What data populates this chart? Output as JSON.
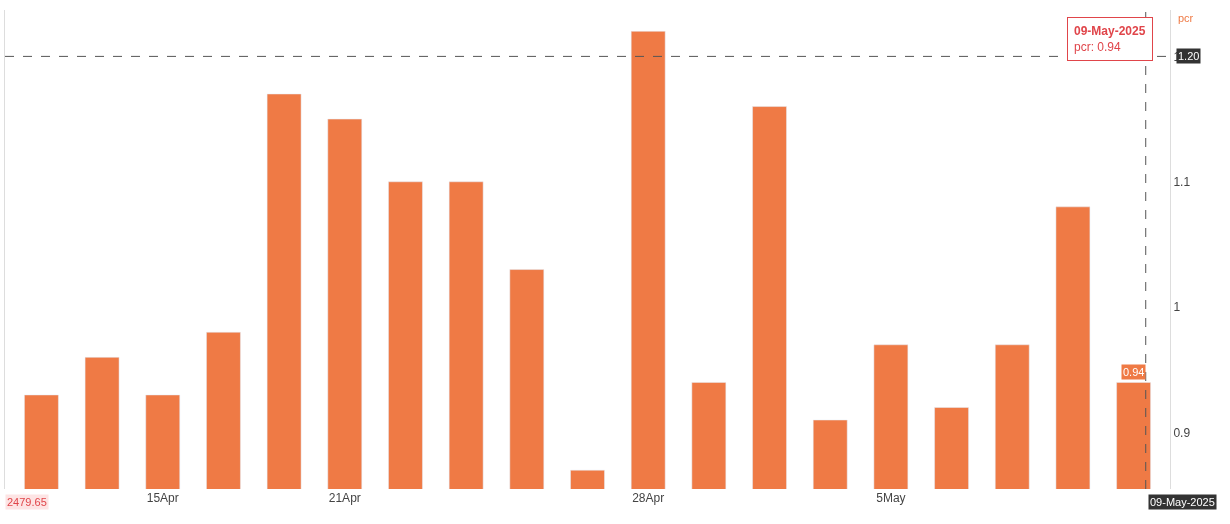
{
  "chart_data": {
    "type": "bar",
    "ylabel": "pcr",
    "categories": [
      null,
      null,
      "15Apr",
      null,
      null,
      "21Apr",
      null,
      null,
      null,
      null,
      "28Apr",
      null,
      null,
      null,
      "5May",
      null,
      null,
      null,
      null
    ],
    "values": [
      0.93,
      0.96,
      0.93,
      0.98,
      1.17,
      1.15,
      1.1,
      1.1,
      1.03,
      0.87,
      1.22,
      0.94,
      1.16,
      0.91,
      0.97,
      0.92,
      0.97,
      1.08,
      0.94
    ],
    "value_labels": [
      null,
      null,
      null,
      null,
      null,
      null,
      null,
      null,
      null,
      null,
      null,
      null,
      null,
      null,
      null,
      null,
      null,
      null,
      "0.94"
    ],
    "color": "#ef7a45",
    "ylim": [
      0.855,
      1.237
    ],
    "yticks": [
      0.9,
      {
        "value": 1.0,
        "label": "1"
      },
      1.1,
      1.2
    ],
    "legend": false,
    "ref_lines": [
      {
        "axis": "y",
        "value": 1.2,
        "label": "1.20",
        "color": "#555555",
        "line_style": "dashed"
      }
    ],
    "annotations": [
      "09-May-2025\npcr: 0.94",
      "2479.65",
      "09-May-2025"
    ]
  }
}
